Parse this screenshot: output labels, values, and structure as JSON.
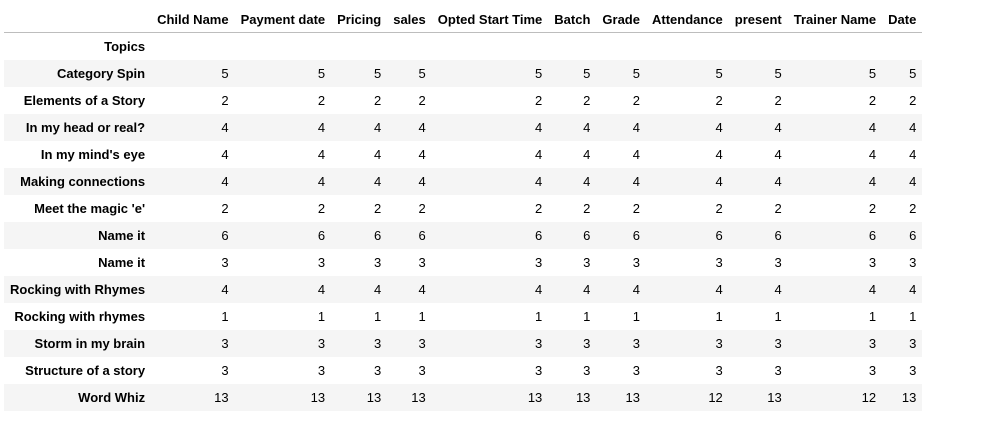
{
  "table": {
    "index_name": "Topics",
    "columns": [
      "Child Name",
      "Payment date",
      "Pricing",
      "sales",
      "Opted Start Time",
      "Batch",
      "Grade",
      "Attendance",
      "present",
      "Trainer Name",
      "Date"
    ],
    "rows": [
      {
        "label": "Category Spin",
        "values": [
          "5",
          "5",
          "5",
          "5",
          "5",
          "5",
          "5",
          "5",
          "5",
          "5",
          "5"
        ]
      },
      {
        "label": "Elements of a Story",
        "values": [
          "2",
          "2",
          "2",
          "2",
          "2",
          "2",
          "2",
          "2",
          "2",
          "2",
          "2"
        ]
      },
      {
        "label": "In my head or real?",
        "values": [
          "4",
          "4",
          "4",
          "4",
          "4",
          "4",
          "4",
          "4",
          "4",
          "4",
          "4"
        ]
      },
      {
        "label": "In my mind's eye",
        "values": [
          "4",
          "4",
          "4",
          "4",
          "4",
          "4",
          "4",
          "4",
          "4",
          "4",
          "4"
        ]
      },
      {
        "label": "Making connections",
        "values": [
          "4",
          "4",
          "4",
          "4",
          "4",
          "4",
          "4",
          "4",
          "4",
          "4",
          "4"
        ]
      },
      {
        "label": "Meet the magic 'e'",
        "values": [
          "2",
          "2",
          "2",
          "2",
          "2",
          "2",
          "2",
          "2",
          "2",
          "2",
          "2"
        ]
      },
      {
        "label": "Name it",
        "values": [
          "6",
          "6",
          "6",
          "6",
          "6",
          "6",
          "6",
          "6",
          "6",
          "6",
          "6"
        ]
      },
      {
        "label": "Name it",
        "values": [
          "3",
          "3",
          "3",
          "3",
          "3",
          "3",
          "3",
          "3",
          "3",
          "3",
          "3"
        ]
      },
      {
        "label": "Rocking with Rhymes",
        "values": [
          "4",
          "4",
          "4",
          "4",
          "4",
          "4",
          "4",
          "4",
          "4",
          "4",
          "4"
        ]
      },
      {
        "label": "Rocking with rhymes",
        "values": [
          "1",
          "1",
          "1",
          "1",
          "1",
          "1",
          "1",
          "1",
          "1",
          "1",
          "1"
        ]
      },
      {
        "label": "Storm in my brain",
        "values": [
          "3",
          "3",
          "3",
          "3",
          "3",
          "3",
          "3",
          "3",
          "3",
          "3",
          "3"
        ]
      },
      {
        "label": "Structure of a story",
        "values": [
          "3",
          "3",
          "3",
          "3",
          "3",
          "3",
          "3",
          "3",
          "3",
          "3",
          "3"
        ]
      },
      {
        "label": "Word Whiz",
        "values": [
          "13",
          "13",
          "13",
          "13",
          "13",
          "13",
          "13",
          "12",
          "13",
          "12",
          "13"
        ]
      }
    ]
  }
}
